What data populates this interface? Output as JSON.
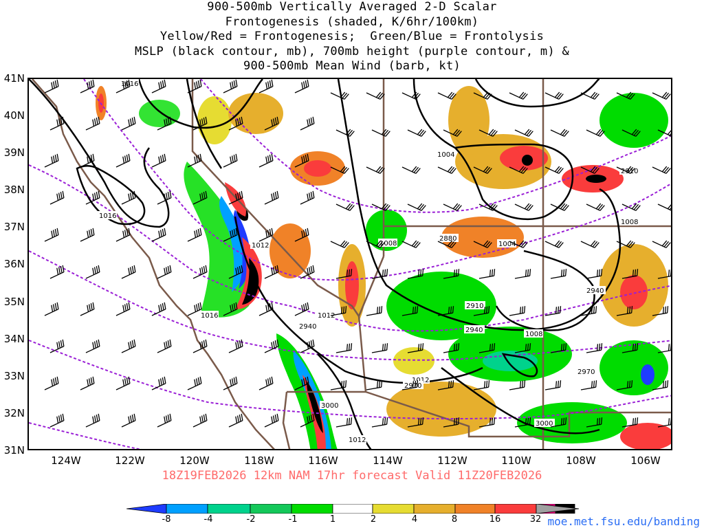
{
  "title_lines": [
    "900-500mb Vertically Averaged 2-D Scalar",
    "Frontogenesis (shaded, K/6hr/100km)",
    "Yellow/Red = Frontogenesis;  Green/Blue = Frontolysis",
    "MSLP (black contour, mb), 700mb height (purple contour, m) &",
    "900-500mb Mean Wind (barb, kt)"
  ],
  "lat_labels": [
    "41N",
    "40N",
    "39N",
    "38N",
    "37N",
    "36N",
    "35N",
    "34N",
    "33N",
    "32N",
    "31N"
  ],
  "lon_labels": [
    "124W",
    "122W",
    "120W",
    "118W",
    "116W",
    "114W",
    "112W",
    "110W",
    "108W",
    "106W"
  ],
  "valid_line": "18Z19FEB2026 12km NAM 17hr forecast Valid 11Z20FEB2026",
  "colorbar": {
    "labels": [
      "-8",
      "-4",
      "-2",
      "-1",
      "1",
      "2",
      "4",
      "8",
      "16",
      "32"
    ],
    "colors": [
      "#1e3cff",
      "#00a0ff",
      "#00d28c",
      "#14c85a",
      "#00dc00",
      "#ffffff",
      "#e6dc32",
      "#e6af2d",
      "#f08228",
      "#fa3c3c",
      "#f00082",
      "#000000",
      "#a0a0a0"
    ]
  },
  "mslp_labels": [
    "1016",
    "1016",
    "1012",
    "1016",
    "1012",
    "1008",
    "1004",
    "1004",
    "1008",
    "1008",
    "1012",
    "1012"
  ],
  "height_labels": [
    "2880",
    "2910",
    "2910",
    "2940",
    "2940",
    "2940",
    "2970",
    "2970",
    "3000",
    "3000"
  ],
  "site_url": "moe.met.fsu.edu/banding",
  "colors": {
    "mslp": "#000000",
    "height": "#9a1fd6",
    "borders": "#7a5a4a",
    "valid": "#ff6a6a",
    "url": "#2a6df4"
  }
}
